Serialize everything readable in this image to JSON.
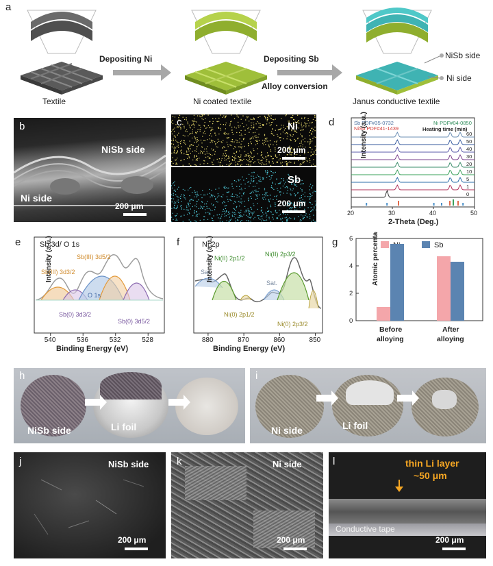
{
  "panels": {
    "a": "a",
    "b": "b",
    "c": "c",
    "d": "d",
    "e": "e",
    "f": "f",
    "g": "g",
    "h": "h",
    "i": "i",
    "j": "j",
    "k": "k",
    "l": "l"
  },
  "schematic": {
    "step1_label": "Textile",
    "arrow1": "Depositing Ni",
    "step2_label": "Ni coated textile",
    "arrow2_top": "Depositing Sb",
    "arrow2_bottom": "Alloy conversion",
    "step3_label": "Janus conductive textile",
    "side_nisb": "NiSb side",
    "side_ni": "Ni side"
  },
  "panel_b": {
    "nisb": "NiSb side",
    "ni": "Ni side",
    "scale": "200 μm"
  },
  "panel_c": {
    "ni": "Ni",
    "sb": "Sb",
    "scale1": "200 μm",
    "scale2": "200 μm"
  },
  "panel_j": {
    "label": "NiSb side",
    "scale": "200 μm"
  },
  "panel_k": {
    "label": "Ni side",
    "scale": "200 μm"
  },
  "panel_l": {
    "label1": "thin Li layer",
    "label2": "~50 μm",
    "tape": "Conductive tape",
    "scale": "200 μm"
  },
  "panel_h": {
    "side": "NiSb side",
    "foil": "Li foil"
  },
  "panel_i": {
    "side": "Ni side",
    "foil": "Li foil"
  },
  "colors": {
    "ni_bar": "#f4a6aa",
    "sb_bar": "#5b84b1",
    "green": "#5a9b2e",
    "orange": "#e39a3a",
    "purple": "#8c6bb1",
    "blue_fit": "#6a93c9"
  },
  "chart_data": [
    {
      "type": "line",
      "id": "d",
      "xlabel": "2-Theta (Deg.)",
      "ylabel": "Intensity (a.u.)",
      "xlim": [
        20,
        50
      ],
      "xticks": [
        20,
        30,
        40,
        50
      ],
      "legend": [
        "Sb PDF#35-0732",
        "Ni PDF#04-0850",
        "NiSb PDF#41-1439"
      ],
      "heading": "Heating time (min)",
      "series_labels": [
        "60",
        "50",
        "40",
        "30",
        "20",
        "10",
        "5",
        "1",
        "0"
      ],
      "series_colors": [
        "#6b8fb5",
        "#355a9e",
        "#5a5aa8",
        "#7a3f8c",
        "#3a8c6a",
        "#3aa05a",
        "#2b6ea8",
        "#b0305a",
        "#333333"
      ],
      "peaks": [
        31.2,
        44.1,
        46.5
      ],
      "ref_sticks": {
        "sb": [
          23.7,
          28.7,
          40.1,
          42.0,
          47.2
        ],
        "ni": [
          44.5
        ],
        "nisb": [
          31.5,
          44.0,
          46.0
        ]
      }
    },
    {
      "type": "line",
      "id": "e",
      "title": "Sb 3d/ O 1s",
      "xlabel": "Binding Energy (eV)",
      "ylabel": "Intensity (a.u.)",
      "xlim": [
        542,
        526
      ],
      "xticks": [
        540,
        536,
        532,
        528
      ],
      "annotations": [
        "Sb(III) 3d3/2",
        "Sb(III) 3d5/2",
        "O 1s",
        "Sb(0) 3d3/2",
        "Sb(0) 3d5/2"
      ]
    },
    {
      "type": "line",
      "id": "f",
      "title": "Ni 2p",
      "xlabel": "Binding Energy (eV)",
      "ylabel": "Intensity (a.u.)",
      "xlim": [
        884,
        848
      ],
      "xticks": [
        880,
        870,
        860,
        850
      ],
      "annotations": [
        "Sat.",
        "Ni(II) 2p1/2",
        "Ni(II) 2p3/2",
        "Sat.",
        "Ni(0) 2p1/2",
        "Ni(0) 2p3/2"
      ]
    },
    {
      "type": "bar",
      "id": "g",
      "categories": [
        "Before alloying",
        "After alloying"
      ],
      "series": [
        {
          "name": "Ni",
          "values": [
            1.0,
            4.7
          ]
        },
        {
          "name": "Sb",
          "values": [
            5.6,
            4.3
          ]
        }
      ],
      "ylabel": "Atomic percentage (%)",
      "ylim": [
        0,
        6
      ],
      "yticks": [
        0,
        2,
        4,
        6
      ]
    }
  ]
}
